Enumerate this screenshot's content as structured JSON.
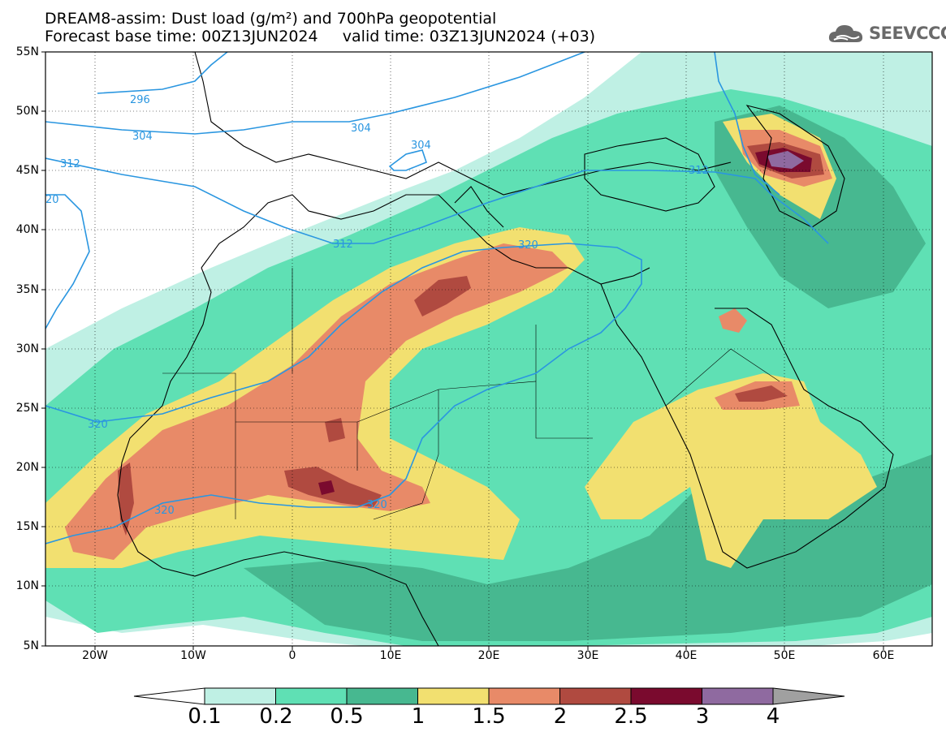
{
  "title": {
    "line1": "DREAM8-assim: Dust load (g/m²) and 700hPa geopotential",
    "line2": "Forecast base time: 00Z13JUN2024     valid time: 03Z13JUN2024 (+03)"
  },
  "logo": {
    "text": "SEEVCCC",
    "icon": "cloud-icon"
  },
  "axes": {
    "lat_labels": [
      "55N",
      "50N",
      "45N",
      "40N",
      "35N",
      "30N",
      "25N",
      "20N",
      "15N",
      "10N",
      "5N"
    ],
    "lon_labels": [
      "20W",
      "10W",
      "0",
      "10E",
      "20E",
      "30E",
      "40E",
      "50E",
      "60E"
    ]
  },
  "contour_labels": [
    "296",
    "304",
    "304",
    "304",
    "312",
    "312",
    "312",
    "20",
    "320",
    "320",
    "320",
    "320"
  ],
  "colorbar": {
    "levels": [
      "0.1",
      "0.2",
      "0.5",
      "1",
      "1.5",
      "2",
      "2.5",
      "3",
      "4"
    ],
    "colors": [
      "#bff0e4",
      "#5fe0b4",
      "#47b890",
      "#f2e070",
      "#e88a68",
      "#b04a40",
      "#7a0a2e",
      "#8f6aa0"
    ],
    "under_color": "#ffffff",
    "over_color": "#a0a0a0"
  },
  "colors": {
    "contour": "#2a96e0",
    "coast": "#000000"
  }
}
